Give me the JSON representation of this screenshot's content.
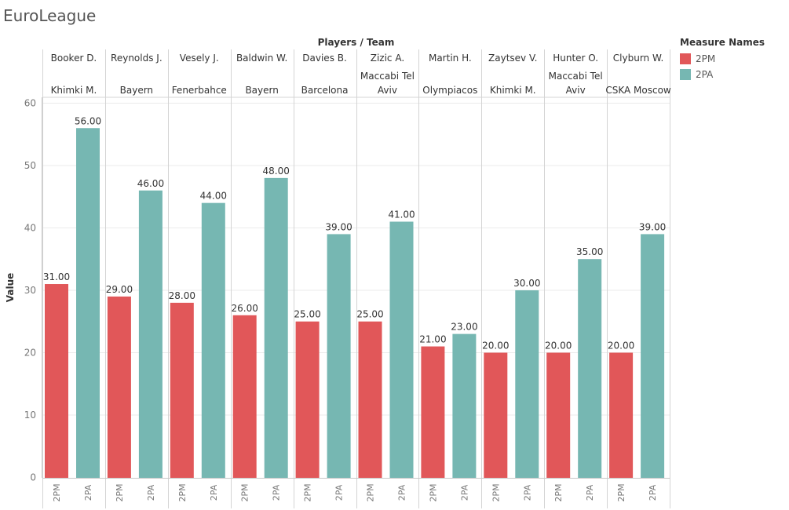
{
  "title": "EuroLeague",
  "legend": {
    "title": "Measure Names",
    "items": [
      {
        "label": "2PM",
        "color": "#e15759"
      },
      {
        "label": "2PA",
        "color": "#76b7b2"
      }
    ]
  },
  "chart_data": {
    "type": "bar",
    "header_title": "Players / Team",
    "ylabel": "Value",
    "ylim": [
      0,
      61
    ],
    "yticks": [
      0,
      10,
      20,
      30,
      40,
      50,
      60
    ],
    "grid": true,
    "legend_position": "top-right",
    "categories": [
      {
        "player": "Booker D.",
        "team": [
          "Khimki M."
        ]
      },
      {
        "player": "Reynolds J.",
        "team": [
          "Bayern"
        ]
      },
      {
        "player": "Vesely J.",
        "team": [
          "Fenerbahce"
        ]
      },
      {
        "player": "Baldwin W.",
        "team": [
          "Bayern"
        ]
      },
      {
        "player": "Davies B.",
        "team": [
          "Barcelona"
        ]
      },
      {
        "player": "Zizic A.",
        "team": [
          "Maccabi Tel",
          "Aviv"
        ]
      },
      {
        "player": "Martin H.",
        "team": [
          "Olympiacos"
        ]
      },
      {
        "player": "Zaytsev V.",
        "team": [
          "Khimki M."
        ]
      },
      {
        "player": "Hunter O.",
        "team": [
          "Maccabi Tel",
          "Aviv"
        ]
      },
      {
        "player": "Clyburn W.",
        "team": [
          "CSKA Moscow"
        ]
      }
    ],
    "series": [
      {
        "name": "2PM",
        "color": "#e15759",
        "values": [
          31,
          29,
          28,
          26,
          25,
          25,
          21,
          20,
          20,
          20
        ]
      },
      {
        "name": "2PA",
        "color": "#76b7b2",
        "values": [
          56,
          46,
          44,
          48,
          39,
          41,
          23,
          30,
          35,
          39
        ]
      }
    ],
    "value_format_decimals": 2
  }
}
